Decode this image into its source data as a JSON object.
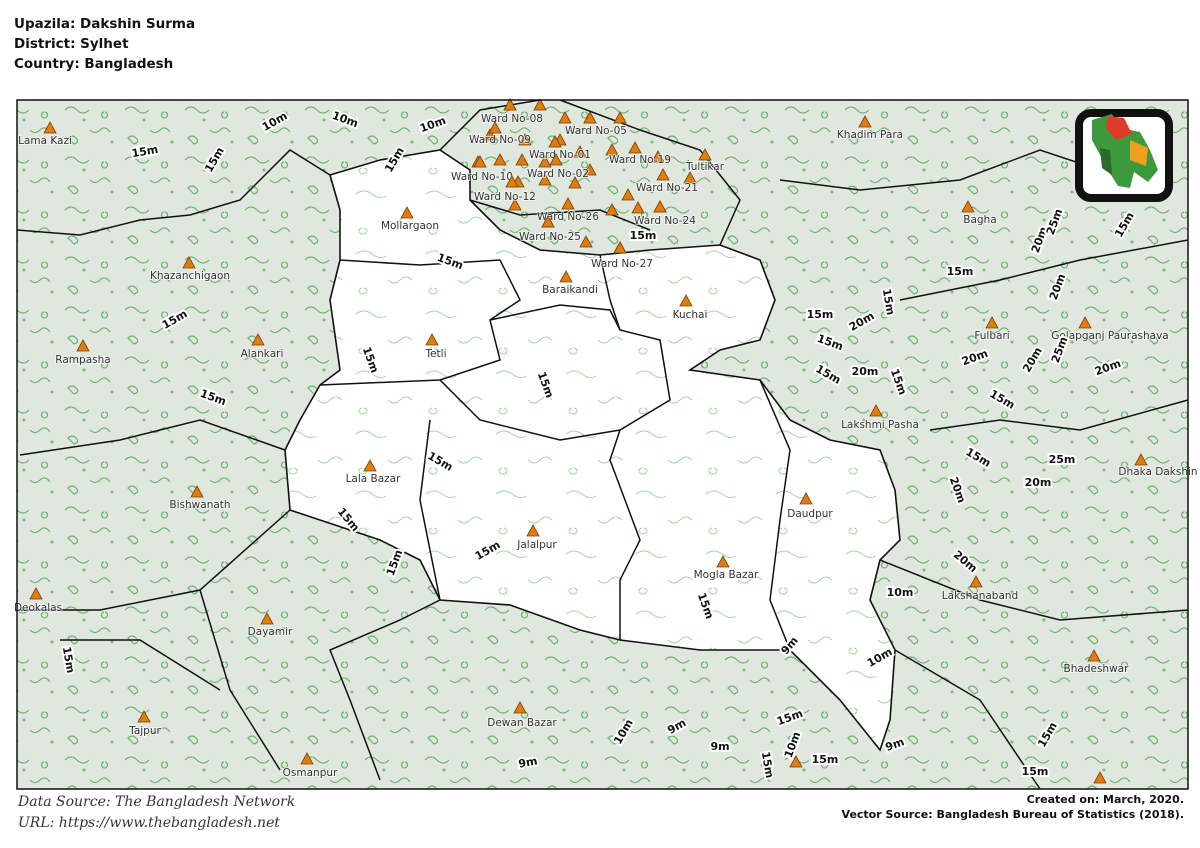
{
  "header": {
    "upazila": "Upazila: Dakshin Surma",
    "district": "District: Sylhet",
    "country": "Country: Bangladesh"
  },
  "places": [
    "Lama Kazi",
    "Khadim Para",
    "Ward No-08",
    "Ward No-09",
    "Ward No-05",
    "Ward No-01",
    "Ward No-19",
    "Tultikar",
    "Ward No-10",
    "Ward No-02",
    "Ward No-21",
    "Ward No-12",
    "Ward No-26",
    "Ward No-24",
    "Ward No-25",
    "Ward No-27",
    "Mollargaon",
    "Bagha",
    "Khazanchigaon",
    "Baraikandi",
    "Kuchai",
    "Fulbari",
    "Golapganj Paurashava",
    "Alankari",
    "Tetli",
    "Rampasha",
    "Lakshmi Pasha",
    "Dhaka Dakshin",
    "Lala Bazar",
    "Bishwanath",
    "Daudpur",
    "Jalalpur",
    "Mogla Bazar",
    "Lakshanaband",
    "Deokalas",
    "Dayamir",
    "Bhadeshwar",
    "Dewan Bazar",
    "Tajpur",
    "Osmanpur"
  ],
  "contour_labels": [
    "10m",
    "10m",
    "10m",
    "15m",
    "15m",
    "15m",
    "15m",
    "15m",
    "15m",
    "15m",
    "15m",
    "15m",
    "15m",
    "15m",
    "15m",
    "15m",
    "15m",
    "15m",
    "15m",
    "15m",
    "15m",
    "15m",
    "15m",
    "15m",
    "15m",
    "15m",
    "15m",
    "15m",
    "15m",
    "15m",
    "15m",
    "15m",
    "20m",
    "20m",
    "20m",
    "20m",
    "20m",
    "20m",
    "20m",
    "20m",
    "20m",
    "20m",
    "25m",
    "25m",
    "25m",
    "10m",
    "10m",
    "9m",
    "10m",
    "9m",
    "9m",
    "9m",
    "10m",
    "9m"
  ],
  "footer": {
    "data_source": "Data Source: The Bangladesh Network",
    "url": "URL: https://www.thebangladesh.net",
    "created": "Created on: March, 2020.",
    "vector_source": "Vector Source: Bangladesh Bureau of Statistics (2018)."
  }
}
